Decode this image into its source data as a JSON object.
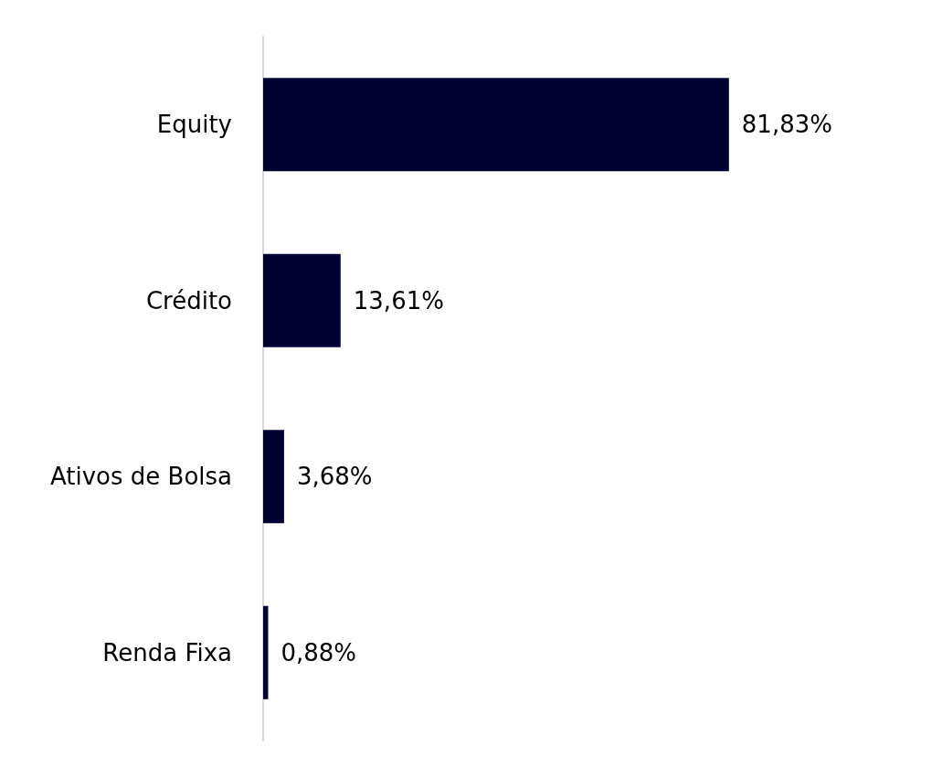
{
  "chart_data": {
    "type": "bar",
    "orientation": "horizontal",
    "categories": [
      "Equity",
      "Crédito",
      "Ativos de Bolsa",
      "Renda Fixa"
    ],
    "values": [
      81.83,
      13.61,
      3.68,
      0.88
    ],
    "value_labels": [
      "81,83%",
      "13,61%",
      "3,68%",
      "0,88%"
    ],
    "color": "#000033"
  }
}
